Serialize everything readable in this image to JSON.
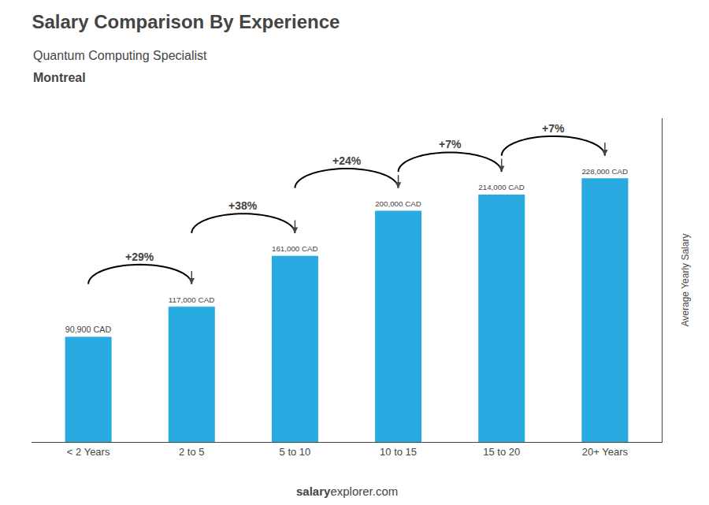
{
  "chart_data": {
    "type": "bar",
    "title": "Salary Comparison By Experience",
    "subtitle": [
      "Quantum Computing Specialist",
      "Montreal"
    ],
    "ylabel": "Average Yearly Salary",
    "footer": [
      "salary",
      "explorer.com"
    ],
    "categories": [
      "< 2 Years",
      "2 to 5",
      "5 to 10",
      "10 to 15",
      "15 to 20",
      "20+ Years"
    ],
    "values": [
      90900,
      117000,
      161000,
      200000,
      214000,
      228000
    ],
    "value_labels": [
      "90,900 CAD",
      "117,000 CAD",
      "161,000 CAD",
      "200,000 CAD",
      "214,000 CAD",
      "228,000 CAD"
    ],
    "data_labels": true,
    "annotations": [
      "+29%",
      "+38%",
      "+24%",
      "+7%",
      "+7%"
    ],
    "color": "#29ABE2",
    "ylim": [
      0,
      280000
    ],
    "grid": false,
    "tick_labels": "x"
  }
}
